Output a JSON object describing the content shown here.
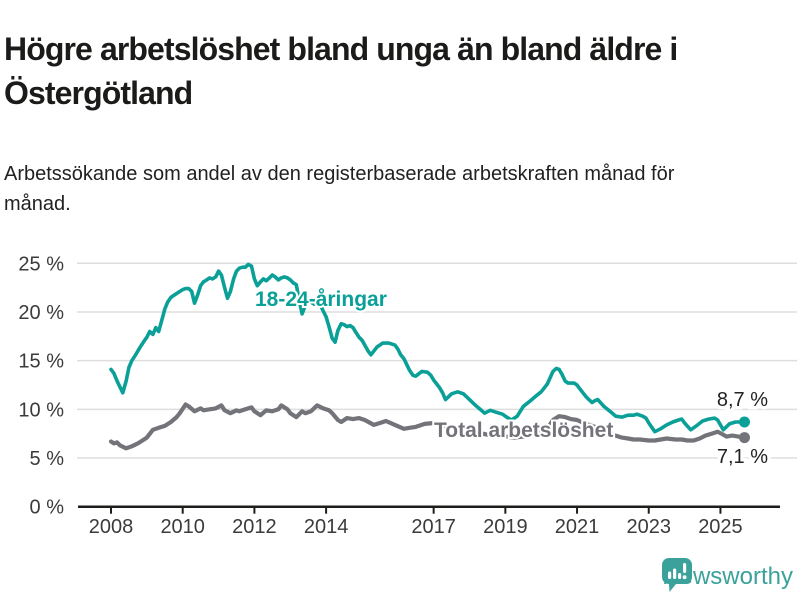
{
  "header": {
    "title": "Högre arbetslöshet bland unga än bland äldre i Östergötland",
    "subtitle": "Arbetssökande som andel av den registerbaserade arbetskraften månad för månad."
  },
  "footer": {
    "brand": "Newsworthy",
    "brand_color": "#3ba29b"
  },
  "colors": {
    "background": "#ffffff",
    "title_text": "#1b1b19",
    "grid": "#dedede",
    "axis_line": "#1d1d1b",
    "axis_text": "#3b3b3b",
    "youth_line": "#0aa098",
    "total_line": "#73737a",
    "annotation_text": "#222222"
  },
  "chart_data": {
    "type": "line",
    "title": "",
    "xlabel": "",
    "ylabel": "",
    "grid": true,
    "x_axis": {
      "range": [
        2007.55,
        2026.2
      ],
      "ticks": [
        {
          "value": 2008,
          "label": "2008"
        },
        {
          "value": 2010,
          "label": "2010"
        },
        {
          "value": 2012,
          "label": "2012"
        },
        {
          "value": 2014,
          "label": "2014"
        },
        {
          "value": 2017,
          "label": "2017"
        },
        {
          "value": 2019,
          "label": "2019"
        },
        {
          "value": 2021,
          "label": "2021"
        },
        {
          "value": 2023,
          "label": "2023"
        },
        {
          "value": 2025,
          "label": "2025"
        }
      ]
    },
    "y_axis": {
      "range": [
        0,
        25
      ],
      "unit": "%",
      "ticks": [
        {
          "value": 0,
          "label": "0 %"
        },
        {
          "value": 5,
          "label": "5 %"
        },
        {
          "value": 10,
          "label": "10 %"
        },
        {
          "value": 15,
          "label": "15 %"
        },
        {
          "value": 20,
          "label": "20 %"
        },
        {
          "value": 25,
          "label": "25 %"
        }
      ]
    },
    "series": [
      {
        "name": "18-24-åringar",
        "color": "#0aa098",
        "line_width": 3.6,
        "end_value": 8.7,
        "end_label": "8,7 %",
        "points": [
          [
            2008.0,
            14.1
          ],
          [
            2008.08,
            13.7
          ],
          [
            2008.17,
            12.9
          ],
          [
            2008.33,
            11.7
          ],
          [
            2008.42,
            12.9
          ],
          [
            2008.5,
            14.3
          ],
          [
            2008.58,
            15.0
          ],
          [
            2008.67,
            15.5
          ],
          [
            2008.83,
            16.5
          ],
          [
            2008.92,
            17.0
          ],
          [
            2009.0,
            17.4
          ],
          [
            2009.08,
            18.0
          ],
          [
            2009.17,
            17.7
          ],
          [
            2009.25,
            18.4
          ],
          [
            2009.33,
            18.0
          ],
          [
            2009.42,
            19.2
          ],
          [
            2009.5,
            20.3
          ],
          [
            2009.58,
            21.0
          ],
          [
            2009.67,
            21.5
          ],
          [
            2009.83,
            21.9
          ],
          [
            2010.0,
            22.3
          ],
          [
            2010.08,
            22.4
          ],
          [
            2010.17,
            22.4
          ],
          [
            2010.25,
            22.1
          ],
          [
            2010.33,
            20.9
          ],
          [
            2010.42,
            21.8
          ],
          [
            2010.5,
            22.7
          ],
          [
            2010.58,
            23.1
          ],
          [
            2010.67,
            23.3
          ],
          [
            2010.75,
            23.5
          ],
          [
            2010.83,
            23.4
          ],
          [
            2010.92,
            23.6
          ],
          [
            2011.0,
            24.2
          ],
          [
            2011.08,
            23.8
          ],
          [
            2011.17,
            22.5
          ],
          [
            2011.25,
            21.4
          ],
          [
            2011.33,
            22.1
          ],
          [
            2011.42,
            23.4
          ],
          [
            2011.5,
            24.2
          ],
          [
            2011.58,
            24.5
          ],
          [
            2011.67,
            24.6
          ],
          [
            2011.75,
            24.6
          ],
          [
            2011.83,
            24.9
          ],
          [
            2011.92,
            24.7
          ],
          [
            2012.0,
            23.4
          ],
          [
            2012.08,
            22.7
          ],
          [
            2012.17,
            23.1
          ],
          [
            2012.25,
            23.4
          ],
          [
            2012.33,
            23.2
          ],
          [
            2012.42,
            23.5
          ],
          [
            2012.5,
            23.8
          ],
          [
            2012.58,
            23.6
          ],
          [
            2012.67,
            23.3
          ],
          [
            2012.75,
            23.5
          ],
          [
            2012.83,
            23.6
          ],
          [
            2012.92,
            23.5
          ],
          [
            2013.0,
            23.3
          ],
          [
            2013.08,
            23.0
          ],
          [
            2013.17,
            22.8
          ],
          [
            2013.25,
            21.2
          ],
          [
            2013.33,
            19.8
          ],
          [
            2013.42,
            20.7
          ],
          [
            2013.5,
            21.2
          ],
          [
            2013.58,
            21.0
          ],
          [
            2013.67,
            20.8
          ],
          [
            2013.75,
            21.2
          ],
          [
            2013.83,
            20.8
          ],
          [
            2013.92,
            20.1
          ],
          [
            2014.0,
            19.5
          ],
          [
            2014.08,
            18.5
          ],
          [
            2014.17,
            17.3
          ],
          [
            2014.25,
            16.9
          ],
          [
            2014.33,
            18.1
          ],
          [
            2014.42,
            18.8
          ],
          [
            2014.5,
            18.7
          ],
          [
            2014.58,
            18.5
          ],
          [
            2014.67,
            18.6
          ],
          [
            2014.75,
            18.4
          ],
          [
            2014.83,
            17.9
          ],
          [
            2014.92,
            17.4
          ],
          [
            2015.0,
            17.1
          ],
          [
            2015.08,
            16.6
          ],
          [
            2015.17,
            16.0
          ],
          [
            2015.25,
            15.6
          ],
          [
            2015.42,
            16.4
          ],
          [
            2015.58,
            16.8
          ],
          [
            2015.75,
            16.8
          ],
          [
            2015.92,
            16.6
          ],
          [
            2016.0,
            16.2
          ],
          [
            2016.08,
            15.6
          ],
          [
            2016.17,
            15.2
          ],
          [
            2016.33,
            14.0
          ],
          [
            2016.42,
            13.5
          ],
          [
            2016.5,
            13.4
          ],
          [
            2016.67,
            13.9
          ],
          [
            2016.83,
            13.8
          ],
          [
            2016.92,
            13.5
          ],
          [
            2017.0,
            13.0
          ],
          [
            2017.17,
            12.2
          ],
          [
            2017.25,
            11.7
          ],
          [
            2017.33,
            11.0
          ],
          [
            2017.5,
            11.6
          ],
          [
            2017.67,
            11.8
          ],
          [
            2017.83,
            11.6
          ],
          [
            2018.0,
            11.0
          ],
          [
            2018.17,
            10.4
          ],
          [
            2018.33,
            9.9
          ],
          [
            2018.42,
            9.6
          ],
          [
            2018.58,
            9.9
          ],
          [
            2018.75,
            9.7
          ],
          [
            2018.92,
            9.5
          ],
          [
            2019.08,
            9.1
          ],
          [
            2019.17,
            8.9
          ],
          [
            2019.33,
            9.3
          ],
          [
            2019.5,
            10.3
          ],
          [
            2019.67,
            10.8
          ],
          [
            2019.83,
            11.3
          ],
          [
            2020.0,
            11.8
          ],
          [
            2020.17,
            12.6
          ],
          [
            2020.33,
            13.9
          ],
          [
            2020.42,
            14.2
          ],
          [
            2020.5,
            14.1
          ],
          [
            2020.58,
            13.6
          ],
          [
            2020.67,
            12.9
          ],
          [
            2020.75,
            12.7
          ],
          [
            2020.92,
            12.7
          ],
          [
            2021.0,
            12.5
          ],
          [
            2021.08,
            12.1
          ],
          [
            2021.25,
            11.3
          ],
          [
            2021.33,
            11.0
          ],
          [
            2021.42,
            10.7
          ],
          [
            2021.5,
            10.9
          ],
          [
            2021.58,
            11.0
          ],
          [
            2021.75,
            10.3
          ],
          [
            2021.92,
            9.8
          ],
          [
            2022.08,
            9.3
          ],
          [
            2022.25,
            9.2
          ],
          [
            2022.42,
            9.4
          ],
          [
            2022.58,
            9.4
          ],
          [
            2022.67,
            9.5
          ],
          [
            2022.83,
            9.3
          ],
          [
            2022.92,
            9.1
          ],
          [
            2023.0,
            8.6
          ],
          [
            2023.17,
            7.7
          ],
          [
            2023.33,
            8.0
          ],
          [
            2023.5,
            8.4
          ],
          [
            2023.67,
            8.7
          ],
          [
            2023.83,
            8.9
          ],
          [
            2023.92,
            9.0
          ],
          [
            2024.0,
            8.6
          ],
          [
            2024.17,
            7.9
          ],
          [
            2024.33,
            8.3
          ],
          [
            2024.5,
            8.8
          ],
          [
            2024.67,
            9.0
          ],
          [
            2024.83,
            9.1
          ],
          [
            2024.92,
            8.9
          ],
          [
            2025.08,
            7.9
          ],
          [
            2025.25,
            8.5
          ],
          [
            2025.42,
            8.7
          ],
          [
            2025.67,
            8.7
          ]
        ]
      },
      {
        "name": "Total arbetslöshet",
        "color": "#73737a",
        "line_width": 4.2,
        "end_value": 7.1,
        "end_label": "7,1 %",
        "points": [
          [
            2008.0,
            6.7
          ],
          [
            2008.08,
            6.5
          ],
          [
            2008.17,
            6.6
          ],
          [
            2008.25,
            6.3
          ],
          [
            2008.42,
            6.0
          ],
          [
            2008.58,
            6.2
          ],
          [
            2008.75,
            6.5
          ],
          [
            2008.92,
            6.9
          ],
          [
            2009.0,
            7.1
          ],
          [
            2009.17,
            7.9
          ],
          [
            2009.33,
            8.1
          ],
          [
            2009.5,
            8.3
          ],
          [
            2009.67,
            8.7
          ],
          [
            2009.83,
            9.2
          ],
          [
            2009.92,
            9.6
          ],
          [
            2010.08,
            10.5
          ],
          [
            2010.17,
            10.3
          ],
          [
            2010.33,
            9.8
          ],
          [
            2010.5,
            10.1
          ],
          [
            2010.58,
            9.9
          ],
          [
            2010.75,
            10.0
          ],
          [
            2010.92,
            10.1
          ],
          [
            2011.08,
            10.4
          ],
          [
            2011.17,
            9.9
          ],
          [
            2011.33,
            9.6
          ],
          [
            2011.5,
            9.9
          ],
          [
            2011.58,
            9.8
          ],
          [
            2011.75,
            10.0
          ],
          [
            2011.92,
            10.2
          ],
          [
            2012.0,
            9.8
          ],
          [
            2012.17,
            9.4
          ],
          [
            2012.33,
            9.9
          ],
          [
            2012.5,
            9.8
          ],
          [
            2012.67,
            10.0
          ],
          [
            2012.75,
            10.4
          ],
          [
            2012.92,
            10.0
          ],
          [
            2013.0,
            9.6
          ],
          [
            2013.17,
            9.2
          ],
          [
            2013.33,
            9.8
          ],
          [
            2013.42,
            9.6
          ],
          [
            2013.58,
            9.8
          ],
          [
            2013.75,
            10.4
          ],
          [
            2013.92,
            10.1
          ],
          [
            2014.08,
            9.9
          ],
          [
            2014.17,
            9.6
          ],
          [
            2014.33,
            8.9
          ],
          [
            2014.42,
            8.7
          ],
          [
            2014.58,
            9.1
          ],
          [
            2014.75,
            9.0
          ],
          [
            2014.92,
            9.1
          ],
          [
            2015.08,
            8.9
          ],
          [
            2015.33,
            8.4
          ],
          [
            2015.5,
            8.6
          ],
          [
            2015.67,
            8.8
          ],
          [
            2015.92,
            8.4
          ],
          [
            2016.17,
            8.0
          ],
          [
            2016.33,
            8.1
          ],
          [
            2016.5,
            8.2
          ],
          [
            2016.75,
            8.5
          ],
          [
            2017.0,
            8.6
          ],
          [
            2017.25,
            8.4
          ],
          [
            2017.5,
            8.2
          ],
          [
            2017.75,
            8.0
          ],
          [
            2018.0,
            7.8
          ],
          [
            2018.25,
            7.6
          ],
          [
            2018.5,
            7.4
          ],
          [
            2018.75,
            7.3
          ],
          [
            2019.0,
            7.2
          ],
          [
            2019.25,
            7.1
          ],
          [
            2019.5,
            7.2
          ],
          [
            2019.75,
            7.4
          ],
          [
            2020.0,
            7.6
          ],
          [
            2020.17,
            8.0
          ],
          [
            2020.33,
            8.9
          ],
          [
            2020.5,
            9.3
          ],
          [
            2020.67,
            9.2
          ],
          [
            2020.83,
            9.0
          ],
          [
            2021.0,
            8.9
          ],
          [
            2021.25,
            8.5
          ],
          [
            2021.5,
            8.2
          ],
          [
            2021.75,
            7.8
          ],
          [
            2022.0,
            7.4
          ],
          [
            2022.25,
            7.1
          ],
          [
            2022.42,
            7.0
          ],
          [
            2022.58,
            6.9
          ],
          [
            2022.75,
            6.9
          ],
          [
            2023.0,
            6.8
          ],
          [
            2023.17,
            6.8
          ],
          [
            2023.33,
            6.9
          ],
          [
            2023.5,
            7.0
          ],
          [
            2023.75,
            6.9
          ],
          [
            2023.92,
            6.9
          ],
          [
            2024.08,
            6.8
          ],
          [
            2024.25,
            6.8
          ],
          [
            2024.42,
            7.0
          ],
          [
            2024.58,
            7.3
          ],
          [
            2024.75,
            7.5
          ],
          [
            2024.92,
            7.7
          ],
          [
            2025.08,
            7.4
          ],
          [
            2025.17,
            7.2
          ],
          [
            2025.33,
            7.3
          ],
          [
            2025.5,
            7.2
          ],
          [
            2025.67,
            7.1
          ]
        ]
      }
    ],
    "legend_position": "inline-labels"
  }
}
